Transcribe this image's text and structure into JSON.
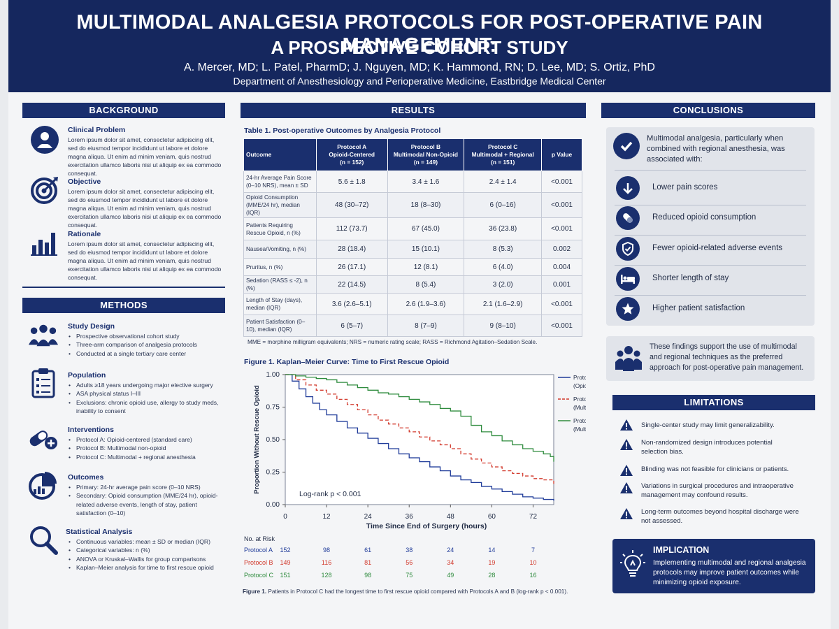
{
  "header": {
    "title_line1": "MULTIMODAL ANALGESIA PROTOCOLS FOR POST-OPERATIVE PAIN MANAGEMENT:",
    "title_line2": "A PROSPECTIVE COHORT STUDY",
    "authors": "A. Mercer, MD; L. Patel, PharmD; J. Nguyen, MD; K. Hammond, RN; D. Lee, MD; S. Ortiz, PhD",
    "affiliation": "Department of Anesthesiology and Perioperative Medicine, Eastbridge Medical Center"
  },
  "background": {
    "title": "BACKGROUND",
    "items": [
      {
        "icon": "person-icon",
        "heading": "Clinical Problem",
        "text": "Lorem ipsum dolor sit amet, consectetur adipiscing elit, sed do eiusmod tempor incididunt ut labore et dolore magna aliqua. Ut enim ad minim veniam, quis nostrud exercitation ullamco laboris nisi ut aliquip ex ea commodo consequat."
      },
      {
        "icon": "target-icon",
        "heading": "Objective",
        "text": "Lorem ipsum dolor sit amet, consectetur adipiscing elit, sed do eiusmod tempor incididunt ut labore et dolore magna aliqua. Ut enim ad minim veniam, quis nostrud exercitation ullamco laboris nisi ut aliquip ex ea commodo consequat."
      },
      {
        "icon": "bar-chart-icon",
        "heading": "Rationale",
        "text": "Lorem ipsum dolor sit amet, consectetur adipiscing elit, sed do eiusmod tempor incididunt ut labore et dolore magna aliqua. Ut enim ad minim veniam, quis nostrud exercitation ullamco laboris nisi ut aliquip ex ea commodo consequat."
      }
    ]
  },
  "methods": {
    "title": "METHODS",
    "items": [
      {
        "icon": "group-icon",
        "heading": "Study Design",
        "bullets": [
          "Prospective observational cohort study",
          "Three-arm comparison of analgesia protocols",
          "Conducted at a single tertiary care center"
        ]
      },
      {
        "icon": "clipboard-icon",
        "heading": "Population",
        "bullets": [
          "Adults ≥18 years undergoing major elective surgery",
          "ASA physical status I–III",
          "Exclusions: chronic opioid use, allergy to study meds, inability to consent"
        ]
      },
      {
        "icon": "pill-icon",
        "heading": "Interventions",
        "bullets": [
          "Protocol A: Opioid-centered (standard care)",
          "Protocol B: Multimodal non-opioid",
          "Protocol C: Multimodal + regional anesthesia"
        ]
      },
      {
        "icon": "pie-chart-icon",
        "heading": "Outcomes",
        "bullets": [
          "Primary: 24-hr average pain score (0–10 NRS)",
          "Secondary: Opioid consumption (MME/24 hr), opioid-related adverse events, length of stay, patient satisfaction (0–10)"
        ]
      },
      {
        "icon": "magnifier-icon",
        "heading": "Statistical Analysis",
        "bullets": [
          "Continuous variables: mean ± SD or median (IQR)",
          "Categorical variables: n (%)",
          "ANOVA or Kruskal–Wallis for group comparisons",
          "Kaplan–Meier analysis for time to first rescue opioid"
        ]
      }
    ]
  },
  "results": {
    "title": "RESULTS",
    "table_title": "Table 1. Post-operative Outcomes by Analgesia Protocol",
    "columns": [
      {
        "l1": "Outcome",
        "l2": "",
        "l3": ""
      },
      {
        "l1": "Protocol A",
        "l2": "Opioid-Centered",
        "l3": "(n = 152)"
      },
      {
        "l1": "Protocol B",
        "l2": "Multimodal Non-Opioid",
        "l3": "(n = 149)"
      },
      {
        "l1": "Protocol C",
        "l2": "Multimodal + Regional",
        "l3": "(n = 151)"
      },
      {
        "l1": "p Value",
        "l2": "",
        "l3": ""
      }
    ],
    "rows": [
      {
        "label": "24-hr Average Pain Score (0–10 NRS), mean ± SD",
        "a": "5.6 ± 1.8",
        "b": "3.4 ± 1.6",
        "c": "2.4 ± 1.4",
        "p": "<0.001"
      },
      {
        "label": "Opioid Consumption (MME/24 hr), median (IQR)",
        "a": "48  (30–72)",
        "b": "18  (8–30)",
        "c": "6  (0–16)",
        "p": "<0.001"
      },
      {
        "label": "Patients Requiring Rescue Opioid, n (%)",
        "a": "112  (73.7)",
        "b": "67  (45.0)",
        "c": "36  (23.8)",
        "p": "<0.001"
      },
      {
        "label": "Nausea/Vomiting, n (%)",
        "a": "28  (18.4)",
        "b": "15  (10.1)",
        "c": "8  (5.3)",
        "p": "0.002"
      },
      {
        "label": "Pruritus, n (%)",
        "a": "26  (17.1)",
        "b": "12  (8.1)",
        "c": "6  (4.0)",
        "p": "0.004"
      },
      {
        "label": "Sedation (RASS ≤ -2), n (%)",
        "a": "22  (14.5)",
        "b": "8  (5.4)",
        "c": "3  (2.0)",
        "p": "0.001"
      },
      {
        "label": "Length of Stay (days), median (IQR)",
        "a": "3.6  (2.6–5.1)",
        "b": "2.6  (1.9–3.6)",
        "c": "2.1  (1.6–2.9)",
        "p": "<0.001"
      },
      {
        "label": "Patient Satisfaction (0–10), median (IQR)",
        "a": "6  (5–7)",
        "b": "8  (7–9)",
        "c": "9  (8–10)",
        "p": "<0.001"
      }
    ],
    "table_note": "MME = morphine milligram equivalents; NRS = numeric rating scale; RASS = Richmond Agitation–Sedation Scale.",
    "figure_title": "Figure 1. Kaplan–Meier Curve: Time to First Rescue Opioid",
    "risk_title": "No. at Risk",
    "risk": [
      {
        "label": "Protocol A",
        "values": [
          "152",
          "98",
          "61",
          "38",
          "24",
          "14",
          "7"
        ]
      },
      {
        "label": "Protocol B",
        "values": [
          "149",
          "116",
          "81",
          "56",
          "34",
          "19",
          "10"
        ]
      },
      {
        "label": "Protocol C",
        "values": [
          "151",
          "128",
          "98",
          "75",
          "49",
          "28",
          "16"
        ]
      }
    ],
    "caption_bold": "Figure 1.",
    "caption": "Patients in Protocol C had the longest time to first rescue opioid compared with Protocols A and B (log-rank p < 0.001)."
  },
  "chart_data": {
    "type": "line",
    "title": "Figure 1. Kaplan–Meier Curve: Time to First Rescue Opioid",
    "xlabel": "Time Since End of Surgery (hours)",
    "ylabel": "Proportion Without Rescue Opioid",
    "xlim": [
      0,
      78
    ],
    "ylim": [
      0,
      1
    ],
    "xticks": [
      "0",
      "12",
      "24",
      "36",
      "48",
      "60",
      "72"
    ],
    "yticks": [
      "0.00",
      "0.25",
      "0.50",
      "0.75",
      "1.00"
    ],
    "annotation": "Log-rank p < 0.001",
    "legend_position": "right",
    "series": [
      {
        "name": "Protocol A",
        "sub": "(Opioid-Centered)",
        "color": "#1f3b99",
        "dash": "solid",
        "x": [
          0,
          2,
          4,
          6,
          8,
          10,
          12,
          15,
          18,
          21,
          24,
          27,
          30,
          33,
          36,
          39,
          42,
          45,
          48,
          51,
          54,
          57,
          60,
          63,
          66,
          69,
          72,
          75,
          78
        ],
        "y": [
          1.0,
          0.95,
          0.89,
          0.83,
          0.78,
          0.73,
          0.69,
          0.64,
          0.59,
          0.55,
          0.51,
          0.47,
          0.43,
          0.39,
          0.36,
          0.33,
          0.29,
          0.26,
          0.22,
          0.19,
          0.17,
          0.14,
          0.12,
          0.1,
          0.08,
          0.06,
          0.05,
          0.04,
          0.03
        ]
      },
      {
        "name": "Protocol B",
        "sub": "(Multimodal Non-Opioid)",
        "color": "#d23a2d",
        "dash": "dashed",
        "x": [
          0,
          3,
          6,
          9,
          12,
          15,
          18,
          21,
          24,
          27,
          30,
          33,
          36,
          39,
          42,
          45,
          48,
          51,
          54,
          57,
          60,
          63,
          66,
          69,
          72,
          75,
          78
        ],
        "y": [
          1.0,
          0.96,
          0.92,
          0.88,
          0.85,
          0.81,
          0.77,
          0.73,
          0.69,
          0.65,
          0.62,
          0.59,
          0.56,
          0.52,
          0.49,
          0.46,
          0.43,
          0.39,
          0.35,
          0.32,
          0.29,
          0.26,
          0.24,
          0.22,
          0.2,
          0.19,
          0.16
        ]
      },
      {
        "name": "Protocol C",
        "sub": "(Multimodal + Regional)",
        "color": "#2e8b3d",
        "dash": "solid",
        "x": [
          0,
          3,
          6,
          9,
          12,
          15,
          18,
          21,
          24,
          27,
          30,
          33,
          36,
          39,
          42,
          45,
          48,
          51,
          54,
          57,
          60,
          63,
          66,
          69,
          72,
          75,
          77,
          78
        ],
        "y": [
          1.0,
          0.99,
          0.98,
          0.97,
          0.96,
          0.94,
          0.92,
          0.9,
          0.88,
          0.86,
          0.85,
          0.83,
          0.81,
          0.79,
          0.77,
          0.74,
          0.72,
          0.68,
          0.61,
          0.56,
          0.53,
          0.49,
          0.46,
          0.43,
          0.41,
          0.39,
          0.37,
          0.33
        ]
      }
    ]
  },
  "conclusions": {
    "title": "CONCLUSIONS",
    "intro": "Multimodal analgesia, particularly when combined with regional anesthesia, was associated with:",
    "items": [
      {
        "icon": "arrow-down-icon",
        "text": "Lower pain scores"
      },
      {
        "icon": "capsule-icon",
        "text": "Reduced opioid consumption"
      },
      {
        "icon": "shield-check-icon",
        "text": "Fewer opioid-related adverse events"
      },
      {
        "icon": "bed-icon",
        "text": "Shorter length of stay"
      },
      {
        "icon": "star-icon",
        "text": "Higher patient satisfaction"
      }
    ],
    "support": "These findings support the use of multimodal and regional techniques as the preferred approach for post-operative pain management."
  },
  "limitations": {
    "title": "LIMITATIONS",
    "items": [
      "Single-center study may limit generalizability.",
      "Non-randomized design introduces potential selection bias.",
      "Blinding was not feasible for clinicians or patients.",
      "Variations in surgical procedures and intraoperative management may confound results.",
      "Long-term outcomes beyond hospital discharge were not assessed."
    ]
  },
  "implication": {
    "title": "IMPLICATION",
    "text": "Implementing multimodal and regional analgesia protocols may improve patient outcomes while minimizing opioid exposure."
  },
  "colors": {
    "navy": "#1a2f6e",
    "header": "#15275e",
    "protocol_a": "#1f3b99",
    "protocol_b": "#d23a2d",
    "protocol_c": "#2e8b3d"
  }
}
